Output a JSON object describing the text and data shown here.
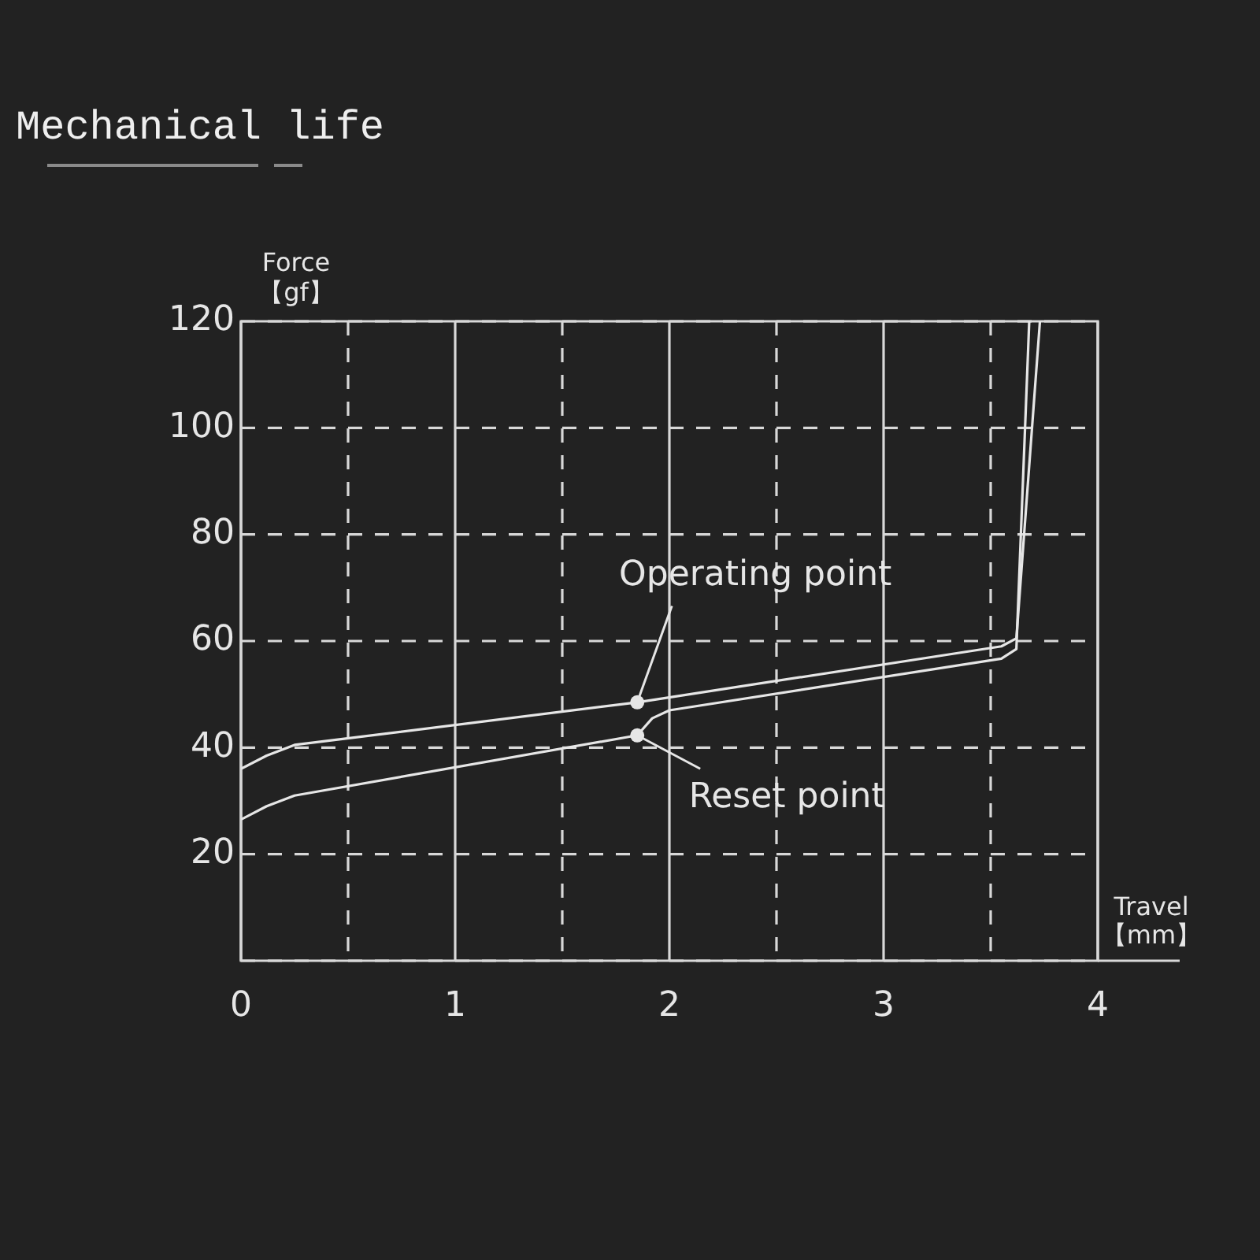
{
  "chart_data": {
    "type": "line",
    "title": "Mechanical life",
    "xlabel": "Travel\n【mm】",
    "ylabel": "Force\n【gf】",
    "series": [
      {
        "color": "#e6e6e6",
        "x": [
          0,
          0.12,
          0.25,
          1.85,
          3.55,
          3.62,
          3.73
        ],
        "values": [
          36,
          38.5,
          40.5,
          48.5,
          59,
          60.5,
          120
        ]
      },
      {
        "color": "#e6e6e6",
        "x": [
          0,
          0.12,
          0.25,
          1.85,
          1.92,
          2.0,
          3.55,
          3.62,
          3.68
        ],
        "values": [
          26.5,
          29,
          31,
          42.3,
          45.5,
          47,
          56.7,
          58.5,
          120
        ]
      }
    ],
    "xlim": [
      0,
      4
    ],
    "ylim": [
      0,
      120
    ],
    "xticks": [
      0,
      {
        "value": 0.5,
        "label": null
      },
      1,
      {
        "value": 1.5,
        "label": null
      },
      2,
      {
        "value": 2.5,
        "label": null
      },
      3,
      {
        "value": 3.5,
        "label": null
      },
      4
    ],
    "yticks": [
      {
        "value": 0,
        "label": null
      },
      20,
      40,
      60,
      80,
      100,
      120
    ],
    "grid": true,
    "marker": "none",
    "line_style": "solid",
    "legend": false,
    "annotations": [
      {
        "text": "Operating point",
        "x": 1.85,
        "y": 48.5
      },
      {
        "text": "Reset point",
        "x": 1.85,
        "y": 42.3
      }
    ]
  }
}
